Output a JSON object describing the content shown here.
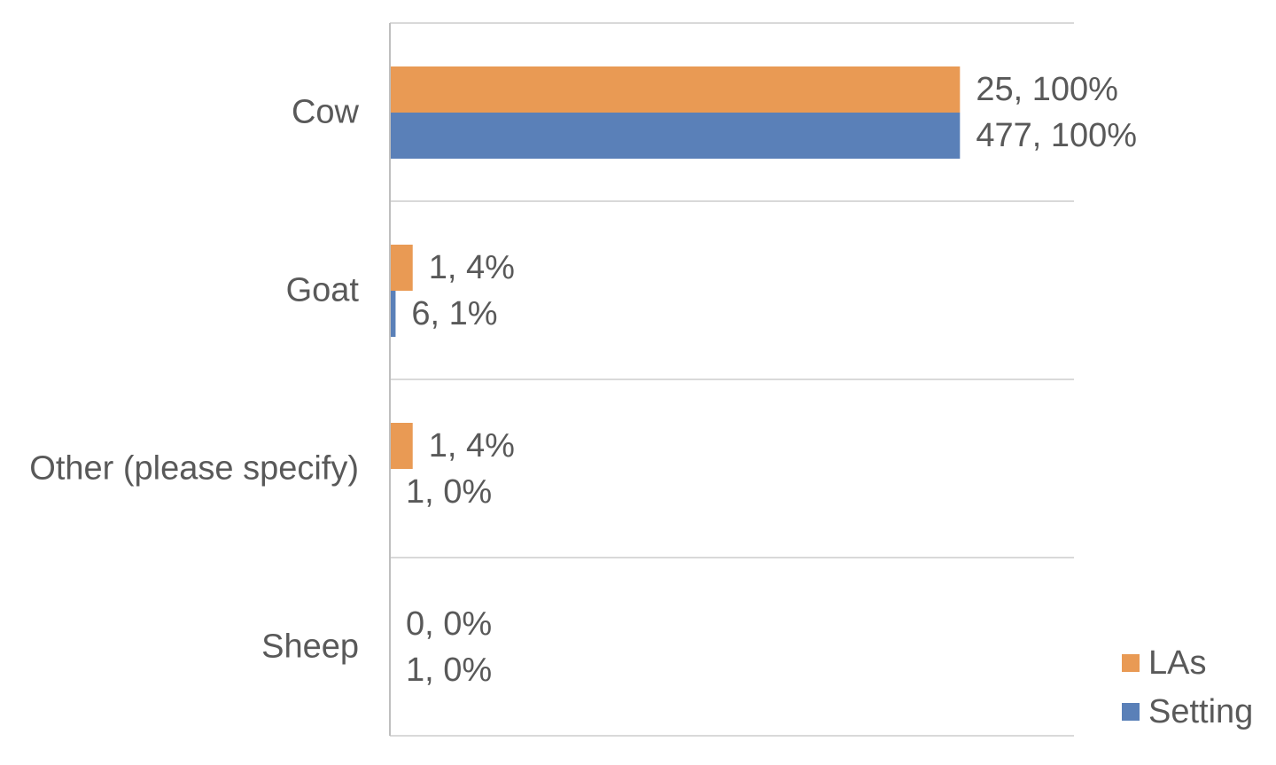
{
  "chart_data": {
    "type": "bar",
    "orientation": "horizontal",
    "categories": [
      "Cow",
      "Goat",
      "Other (please specify)",
      "Sheep"
    ],
    "series": [
      {
        "name": "LAs",
        "color": "#E99A54",
        "values": [
          100,
          4,
          4,
          0
        ],
        "labels": [
          "25, 100%",
          "1, 4%",
          "1, 4%",
          "0, 0%"
        ]
      },
      {
        "name": "Setting",
        "color": "#5A80B8",
        "values": [
          100,
          1,
          0,
          0
        ],
        "labels": [
          "477, 100%",
          "6, 1%",
          "1, 0%",
          "1, 0%"
        ]
      }
    ],
    "xlim": [
      0,
      120
    ],
    "grid": true,
    "legend": "bottom-right",
    "title": "",
    "xlabel": "",
    "ylabel": ""
  },
  "colors": {
    "text": "#595959",
    "gridline": "#D9D9D9",
    "axis": "#BFBFBF"
  }
}
